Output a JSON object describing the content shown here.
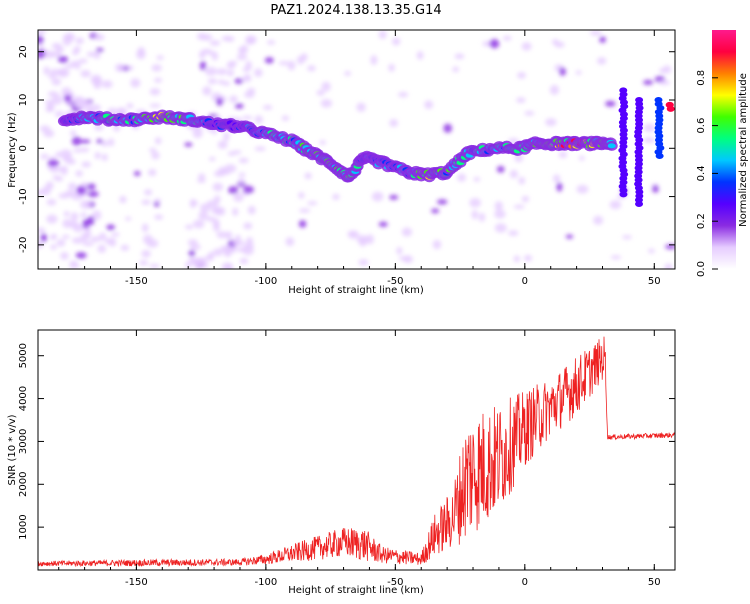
{
  "figure": {
    "title": "PAZ1.2024.138.13.35.G14"
  },
  "chart_data": [
    {
      "type": "heatmap",
      "xlabel": "Height of straight line (km)",
      "ylabel": "Frequency (Hz)",
      "xlim": [
        -188,
        58
      ],
      "ylim": [
        -25,
        24.5
      ],
      "xticks": [
        -150,
        -100,
        -50,
        0,
        50
      ],
      "yticks": [
        20,
        10,
        0,
        -10,
        -20
      ],
      "ytick_labels": [
        "20",
        "10",
        "0",
        "-10",
        "-20"
      ],
      "colorbar": {
        "label": "Normalized spectral amplitude",
        "range": [
          0,
          1
        ],
        "ticks": [
          0.0,
          0.2,
          0.4,
          0.6,
          0.8
        ],
        "tick_labels": [
          "0.0",
          "0.2",
          "0.4",
          "0.6",
          "0.8"
        ],
        "colormap": [
          "#ffffff",
          "#e6ccff",
          "#8a2be2",
          "#5500ff",
          "#0033ff",
          "#00c8ff",
          "#00ff80",
          "#40ff00",
          "#ffff00",
          "#ff8000",
          "#ff0040",
          "#ff1a8c"
        ]
      },
      "ridge": {
        "name": "",
        "points": [
          {
            "x": -178,
            "y": 6,
            "a": 0.35
          },
          {
            "x": -170,
            "y": 6.5,
            "a": 0.45
          },
          {
            "x": -160,
            "y": 6,
            "a": 0.55
          },
          {
            "x": -150,
            "y": 6,
            "a": 0.5
          },
          {
            "x": -140,
            "y": 6.5,
            "a": 0.7
          },
          {
            "x": -130,
            "y": 6,
            "a": 0.55
          },
          {
            "x": -120,
            "y": 5,
            "a": 0.4
          },
          {
            "x": -110,
            "y": 4.5,
            "a": 0.35
          },
          {
            "x": -100,
            "y": 3,
            "a": 0.5
          },
          {
            "x": -90,
            "y": 1.5,
            "a": 0.55
          },
          {
            "x": -82,
            "y": -1,
            "a": 0.6
          },
          {
            "x": -75,
            "y": -3,
            "a": 0.55
          },
          {
            "x": -68,
            "y": -6,
            "a": 0.6
          },
          {
            "x": -62,
            "y": -2,
            "a": 0.45
          },
          {
            "x": -55,
            "y": -3,
            "a": 0.45
          },
          {
            "x": -45,
            "y": -5,
            "a": 0.5
          },
          {
            "x": -38,
            "y": -5.5,
            "a": 0.7
          },
          {
            "x": -30,
            "y": -5,
            "a": 0.55
          },
          {
            "x": -22,
            "y": -1,
            "a": 0.5
          },
          {
            "x": -12,
            "y": 0,
            "a": 0.5
          },
          {
            "x": -2,
            "y": 0,
            "a": 0.55
          },
          {
            "x": 5,
            "y": 1,
            "a": 0.6
          },
          {
            "x": 12,
            "y": 1,
            "a": 0.75
          },
          {
            "x": 20,
            "y": 1,
            "a": 0.9
          },
          {
            "x": 28,
            "y": 1,
            "a": 0.65
          },
          {
            "x": 34,
            "y": 1,
            "a": 0.5
          }
        ]
      },
      "vertical_streaks": [
        {
          "x": 38,
          "y_from": -10,
          "y_to": 12,
          "a": 0.3
        },
        {
          "x": 44,
          "y_from": -12,
          "y_to": 10,
          "a": 0.3
        },
        {
          "x": 52,
          "y_from": -2,
          "y_to": 10,
          "a": 0.35
        },
        {
          "x": 56,
          "y_from": 8,
          "y_to": 9,
          "a": 0.9
        }
      ]
    },
    {
      "type": "line",
      "xlabel": "Height of straight line (km)",
      "ylabel": "SNR (10 * v/v)",
      "xlim": [
        -188,
        58
      ],
      "ylim": [
        0,
        5600
      ],
      "xticks": [
        -150,
        -100,
        -50,
        0,
        50
      ],
      "yticks": [
        1000,
        2000,
        3000,
        4000,
        5000
      ],
      "color": "#ee2222",
      "envelope": [
        {
          "x": -188,
          "mean": 150,
          "noise": 60
        },
        {
          "x": -140,
          "mean": 170,
          "noise": 80
        },
        {
          "x": -110,
          "mean": 180,
          "noise": 80
        },
        {
          "x": -100,
          "mean": 250,
          "noise": 120
        },
        {
          "x": -85,
          "mean": 450,
          "noise": 250
        },
        {
          "x": -70,
          "mean": 650,
          "noise": 350
        },
        {
          "x": -62,
          "mean": 600,
          "noise": 400
        },
        {
          "x": -55,
          "mean": 350,
          "noise": 200
        },
        {
          "x": -40,
          "mean": 250,
          "noise": 150
        },
        {
          "x": -35,
          "mean": 800,
          "noise": 500
        },
        {
          "x": -28,
          "mean": 1200,
          "noise": 700
        },
        {
          "x": -22,
          "mean": 2200,
          "noise": 1500
        },
        {
          "x": -10,
          "mean": 2600,
          "noise": 1300
        },
        {
          "x": 0,
          "mean": 3300,
          "noise": 900
        },
        {
          "x": 10,
          "mean": 3800,
          "noise": 700
        },
        {
          "x": 20,
          "mean": 4300,
          "noise": 700
        },
        {
          "x": 31,
          "mean": 5000,
          "noise": 500
        },
        {
          "x": 32,
          "mean": 3100,
          "noise": 60
        },
        {
          "x": 58,
          "mean": 3150,
          "noise": 60
        }
      ]
    }
  ]
}
